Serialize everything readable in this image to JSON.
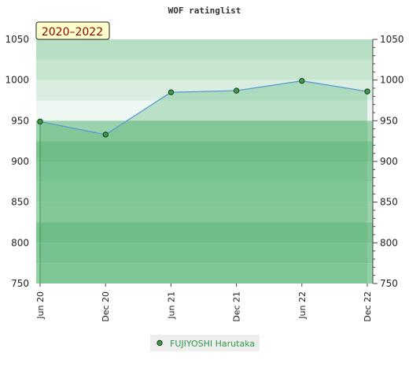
{
  "chart_data": {
    "type": "area",
    "title": "WOF ratinglist",
    "period_label": "2020–2022",
    "x_categories": [
      "Jun 20",
      "Dec 20",
      "Jun 21",
      "Dec 21",
      "Jun 22",
      "Dec 22"
    ],
    "series": [
      {
        "name": "FUJIYOSHI Harutaka",
        "x": [
          "Jun 20",
          "Dec 20",
          "Jun 21",
          "Dec 21",
          "Jun 22",
          "Dec 22"
        ],
        "y": [
          949,
          933,
          985,
          987,
          999,
          986
        ]
      }
    ],
    "ylim": [
      750,
      1050
    ],
    "y_ticks": [
      750,
      800,
      850,
      900,
      950,
      1000,
      1050
    ],
    "y_axis_both_sides": true,
    "grid": false,
    "legend_position": "bottom-center",
    "colors": {
      "line": "#5b9bd5",
      "marker": "#3a9a4a",
      "marker_edge": "#1a3a1a",
      "band_above_light": "#b8dfc2",
      "band_below_dark": "#7cc492",
      "badge_fill": "#ffffcc",
      "legend_text": "#2e9a4a"
    }
  }
}
